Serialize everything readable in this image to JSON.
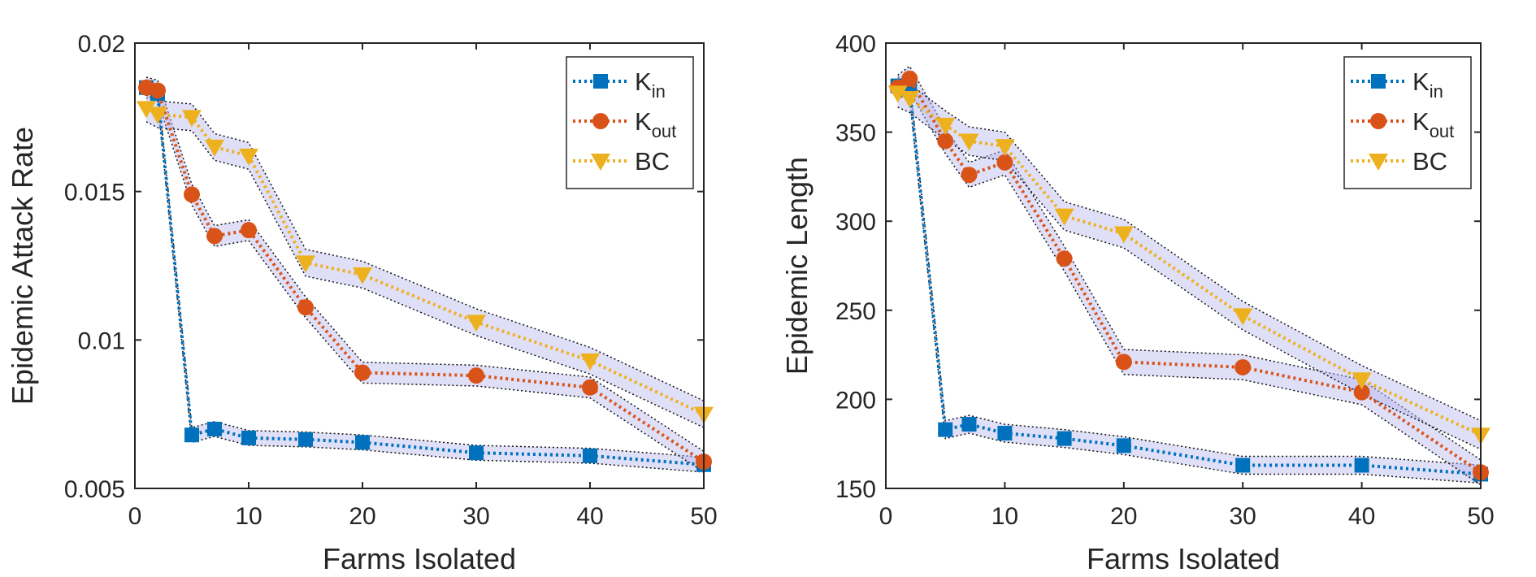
{
  "chart_data": [
    {
      "type": "line",
      "title": "",
      "xlabel": "Farms Isolated",
      "ylabel": "Epidemic Attack Rate",
      "xlim": [
        0,
        50
      ],
      "ylim": [
        0.005,
        0.02
      ],
      "xticks": [
        0,
        10,
        20,
        30,
        40,
        50
      ],
      "yticks": [
        0.005,
        0.01,
        0.015,
        0.02
      ],
      "ytick_labels": [
        "0.005",
        "0.01",
        "0.015",
        "0.02"
      ],
      "grid": false,
      "legend_position": "top-right",
      "x": [
        1,
        2,
        5,
        7,
        10,
        15,
        20,
        30,
        40,
        50
      ],
      "series": [
        {
          "name": "K",
          "sub": "in",
          "color": "#0072BD",
          "marker": "square",
          "values": [
            0.0185,
            0.0183,
            0.0068,
            0.007,
            0.0067,
            0.00665,
            0.00655,
            0.0062,
            0.0061,
            0.0058
          ],
          "band": 0.00025
        },
        {
          "name": "K",
          "sub": "out",
          "color": "#D95319",
          "marker": "circle",
          "values": [
            0.0185,
            0.0184,
            0.0149,
            0.0135,
            0.0137,
            0.0111,
            0.0089,
            0.0088,
            0.0084,
            0.0059
          ],
          "band": 0.00035
        },
        {
          "name": "BC",
          "sub": "",
          "color": "#EDB120",
          "marker": "triangle-down",
          "values": [
            0.0178,
            0.0176,
            0.0175,
            0.0165,
            0.0162,
            0.0126,
            0.0122,
            0.0106,
            0.0093,
            0.0075
          ],
          "band": 0.00045
        }
      ]
    },
    {
      "type": "line",
      "title": "",
      "xlabel": "Farms Isolated",
      "ylabel": "Epidemic Length",
      "xlim": [
        0,
        50
      ],
      "ylim": [
        150,
        400
      ],
      "xticks": [
        0,
        10,
        20,
        30,
        40,
        50
      ],
      "yticks": [
        150,
        200,
        250,
        300,
        350,
        400
      ],
      "ytick_labels": [
        "150",
        "200",
        "250",
        "300",
        "350",
        "400"
      ],
      "grid": false,
      "legend_position": "top-right",
      "x": [
        1,
        2,
        5,
        7,
        10,
        15,
        20,
        30,
        40,
        50
      ],
      "series": [
        {
          "name": "K",
          "sub": "in",
          "color": "#0072BD",
          "marker": "square",
          "values": [
            376,
            374,
            183,
            186,
            181,
            178,
            174,
            163,
            163,
            158
          ],
          "band": 5
        },
        {
          "name": "K",
          "sub": "out",
          "color": "#D95319",
          "marker": "circle",
          "values": [
            375,
            380,
            345,
            326,
            333,
            279,
            221,
            218,
            204,
            159
          ],
          "band": 7
        },
        {
          "name": "BC",
          "sub": "",
          "color": "#EDB120",
          "marker": "triangle-down",
          "values": [
            372,
            369,
            354,
            345,
            342,
            303,
            293,
            247,
            211,
            180
          ],
          "band": 8
        }
      ]
    }
  ]
}
